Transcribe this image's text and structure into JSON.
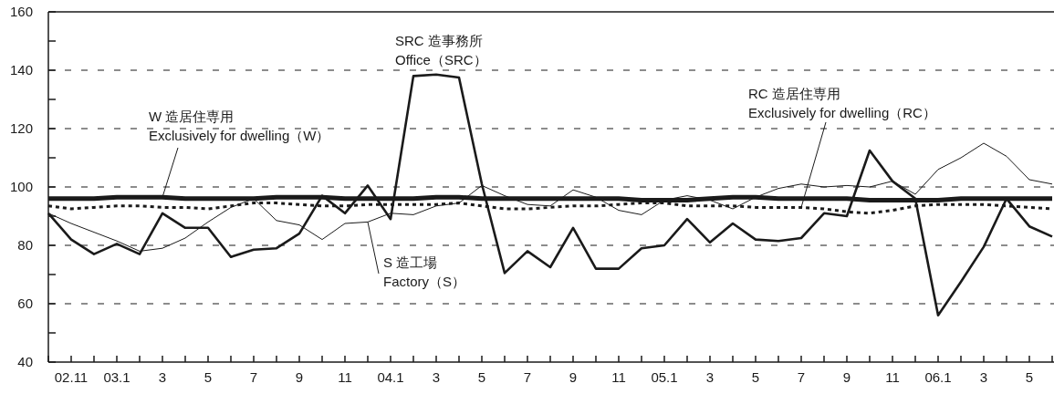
{
  "chart_data": {
    "type": "line",
    "categories": [
      null,
      "02.11",
      null,
      "03.1",
      null,
      "3",
      null,
      "5",
      null,
      "7",
      null,
      "9",
      null,
      "11",
      null,
      "04.1",
      null,
      "3",
      null,
      "5",
      null,
      "7",
      null,
      "9",
      null,
      "11",
      null,
      "05.1",
      null,
      "3",
      null,
      "5",
      null,
      "7",
      null,
      "9",
      null,
      "11",
      null,
      "06.1",
      null,
      "3",
      null,
      "5",
      null
    ],
    "ylim": [
      40,
      160
    ],
    "yticks": [
      40,
      {
        "value": 50,
        "label": null
      },
      60,
      {
        "value": 70,
        "label": null
      },
      80,
      {
        "value": 90,
        "label": null
      },
      100,
      {
        "value": 110,
        "label": null
      },
      120,
      {
        "value": 130,
        "label": null
      },
      140,
      {
        "value": 150,
        "label": null
      },
      160
    ],
    "grid": "y",
    "marker": "none",
    "series": [
      {
        "name": "W 造居住専用\nExclusively for dwelling（W）",
        "color": "#1a1a1a",
        "line_style": "solid",
        "values": [
          96,
          96,
          96,
          96.5,
          96.5,
          96.5,
          96,
          96,
          96,
          96,
          96.5,
          96.5,
          96.5,
          96,
          96,
          96,
          96,
          96.5,
          96.5,
          96,
          96,
          96,
          96,
          96,
          96,
          96,
          95.5,
          95.5,
          95.5,
          96,
          96.5,
          96.5,
          96,
          96,
          96,
          96,
          95.5,
          95.5,
          95.5,
          95.5,
          96,
          96,
          96,
          96,
          96
        ]
      },
      {
        "name": "SRC 造事務所\nOffice（SRC）",
        "color": "#1a1a1a",
        "line_style": "solid",
        "values": [
          91,
          82,
          77,
          80.5,
          77,
          91,
          86,
          86,
          76,
          78.5,
          79,
          84,
          97,
          91,
          100.5,
          89,
          138,
          138.5,
          137.5,
          101,
          70.5,
          78,
          72.5,
          86,
          72,
          72,
          79,
          80,
          89,
          81,
          87.5,
          82,
          81.5,
          82.5,
          91,
          90,
          112.5,
          102,
          96,
          56,
          67.5,
          79.5,
          96,
          86.5,
          83
        ]
      },
      {
        "name": "S 造工場\nFactory（S）",
        "color": "#1a1a1a",
        "line_style": "solid",
        "values": [
          91,
          87.5,
          84.5,
          81.5,
          78,
          79,
          82.5,
          88,
          93,
          96,
          88.5,
          87,
          82,
          87.5,
          88,
          91,
          90.5,
          93.5,
          94.5,
          100.5,
          97,
          94,
          93.5,
          99,
          96.5,
          92,
          90.5,
          95.5,
          97,
          95.5,
          92.5,
          96.5,
          99.5,
          101,
          100,
          100.5,
          100,
          102,
          97.5,
          106,
          110,
          115,
          110.5,
          102.5,
          101
        ]
      },
      {
        "name": "RC 造居住専用\nExclusively for dwelling（RC）",
        "color": "#1a1a1a",
        "line_style": "dotted",
        "values": [
          93.5,
          92.5,
          93,
          93.5,
          93.5,
          93,
          93,
          92.5,
          93.5,
          94.5,
          94.5,
          94,
          93.5,
          93.5,
          94,
          94,
          94,
          94,
          94.5,
          93.5,
          92.5,
          92.5,
          93,
          93.5,
          93.5,
          94,
          94.5,
          94.5,
          93.5,
          93.5,
          93.5,
          93,
          93,
          93,
          92.5,
          91.5,
          91,
          92,
          93.5,
          94,
          94,
          94,
          93.5,
          93,
          92.5
        ]
      }
    ]
  }
}
